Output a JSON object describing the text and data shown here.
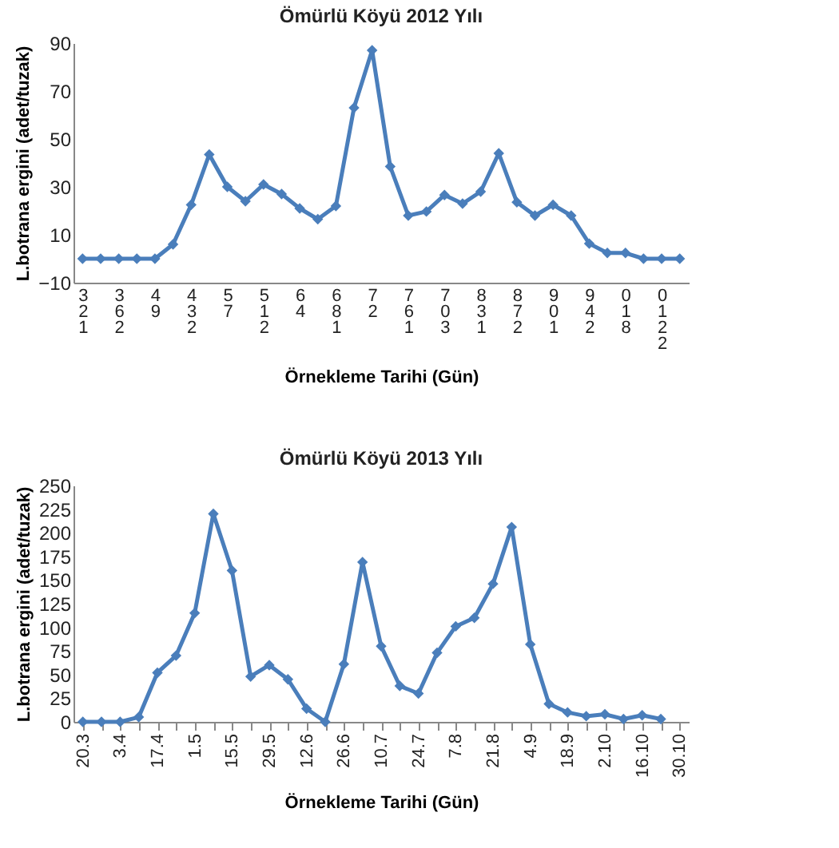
{
  "chart_data": [
    {
      "type": "line",
      "title": "Ömürlü Köyü 2012 Yılı",
      "xlabel": "Örnekleme Tarihi (Gün)",
      "ylabel": "L.botrana ergini (adet/tuzak)",
      "categories": [
        "321",
        null,
        "362",
        null,
        "49",
        null,
        "432",
        null,
        "57",
        null,
        "512",
        null,
        "64",
        null,
        "681",
        null,
        "72",
        null,
        "761",
        null,
        "703",
        null,
        "831",
        null,
        "872",
        null,
        "901",
        null,
        "942",
        null,
        "018",
        null,
        "0122",
        null
      ],
      "series": [
        {
          "color": "#4a7ebb",
          "values": [
            0,
            0,
            0,
            0,
            0,
            6,
            22.5,
            43.5,
            30,
            24,
            31,
            27,
            21,
            16.5,
            22,
            63,
            87,
            38.5,
            18,
            19.7,
            26.6,
            23,
            28,
            44,
            23.6,
            18,
            22.5,
            18,
            6.3,
            2.4,
            2.4,
            0,
            0,
            0
          ]
        }
      ],
      "ylim": [
        -10,
        90
      ],
      "yticks": [
        -10,
        10,
        30,
        50,
        70,
        90
      ],
      "grid": false,
      "marker": "diamond",
      "legend": false
    },
    {
      "type": "line",
      "title": "Ömürlü Köyü 2013 Yılı",
      "xlabel": "Örnekleme Tarihi (Gün)",
      "ylabel": "L.botrana ergini (adet/tuzak)",
      "categories": [
        "20.3",
        null,
        "3.4",
        null,
        "17.4",
        null,
        "1.5",
        null,
        "15.5",
        null,
        "29.5",
        null,
        "12.6",
        null,
        "26.6",
        null,
        "10.7",
        null,
        "24.7",
        null,
        "7.8",
        null,
        "21.8",
        null,
        "4.9",
        null,
        "18.9",
        null,
        "2.10",
        null,
        "16.10",
        null,
        "30.10"
      ],
      "series": [
        {
          "color": "#4a7ebb",
          "values": [
            0,
            0,
            0,
            5,
            52,
            70,
            115,
            220,
            160,
            48,
            60,
            45,
            14,
            0,
            61,
            169,
            80,
            38,
            30,
            73,
            101,
            110,
            146,
            206,
            82,
            19,
            10,
            6,
            8,
            3,
            7,
            3,
            null
          ]
        }
      ],
      "ylim": [
        0,
        250
      ],
      "yticks": [
        0,
        25,
        50,
        75,
        100,
        125,
        150,
        175,
        200,
        225,
        250
      ],
      "grid": false,
      "marker": "diamond",
      "legend": false
    }
  ]
}
